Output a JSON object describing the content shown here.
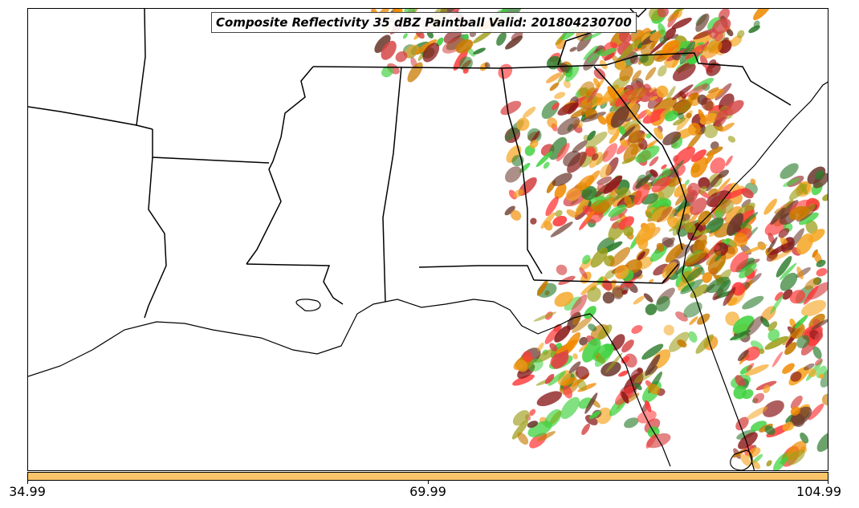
{
  "title": "Composite Reflectivity 35 dBZ Paintball Valid: 201804230700",
  "colorbar": {
    "color": "#f9c46a",
    "ticks": [
      "34.99",
      "69.99",
      "104.99"
    ]
  },
  "paintball_colors": [
    "#ff3b3b",
    "#f08a00",
    "#f5a623",
    "#3fd23f",
    "#8b1a1a",
    "#9e9e1a",
    "#2e7d2e",
    "#6b3a2e",
    "#d64545",
    "#c97a00"
  ],
  "map": {
    "region": "Southeastern United States",
    "features": [
      "state-borders",
      "coastline",
      "reflectivity-paintball"
    ]
  }
}
